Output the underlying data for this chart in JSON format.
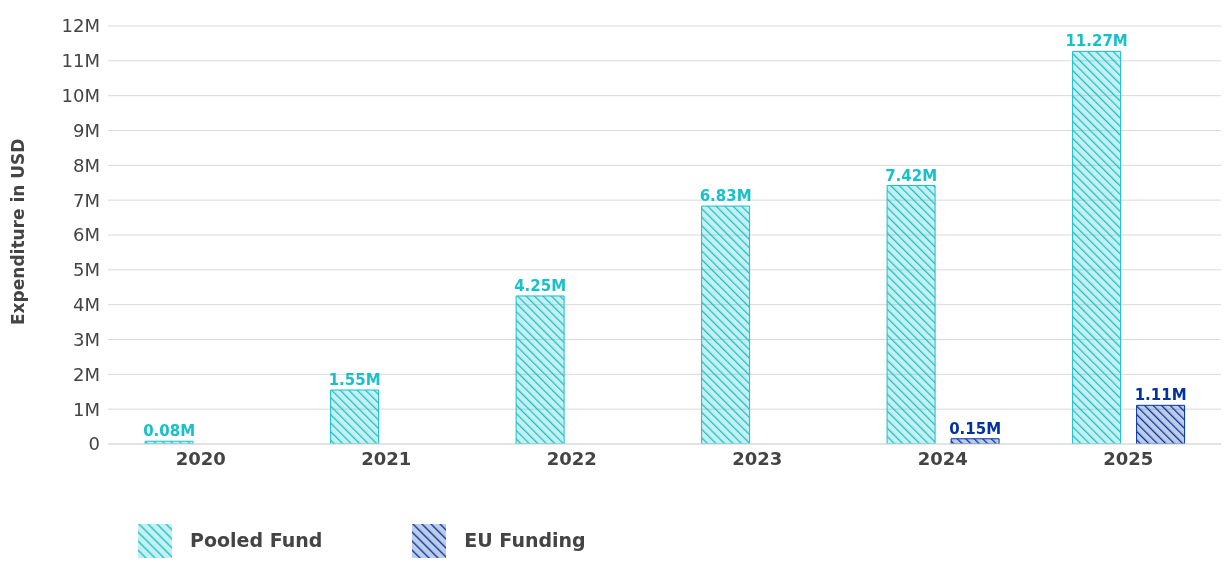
{
  "chart_data": {
    "type": "bar",
    "ylabel": "Expenditure in USD",
    "categories": [
      "2020",
      "2021",
      "2022",
      "2023",
      "2024",
      "2025"
    ],
    "series": [
      {
        "name": "Pooled Fund",
        "color": "#17c1c9",
        "values": [
          0.08,
          1.55,
          4.25,
          6.83,
          7.42,
          11.27
        ],
        "value_labels": [
          "0.08M",
          "1.55M",
          "4.25M",
          "6.83M",
          "7.42M",
          "11.27M"
        ]
      },
      {
        "name": "EU Funding",
        "color": "#0033a0",
        "values": [
          null,
          null,
          null,
          null,
          0.15,
          1.11
        ],
        "value_labels": [
          null,
          null,
          null,
          null,
          "0.15M",
          "1.11M"
        ]
      }
    ],
    "ylim": [
      0,
      12
    ],
    "yticks": [
      0,
      {
        "value": 1,
        "label": "1M"
      },
      {
        "value": 2,
        "label": "2M"
      },
      {
        "value": 3,
        "label": "3M"
      },
      {
        "value": 4,
        "label": "4M"
      },
      {
        "value": 5,
        "label": "5M"
      },
      {
        "value": 6,
        "label": "6M"
      },
      {
        "value": 7,
        "label": "7M"
      },
      {
        "value": 8,
        "label": "8M"
      },
      {
        "value": 9,
        "label": "9M"
      },
      {
        "value": 10,
        "label": "10M"
      },
      {
        "value": 11,
        "label": "11M"
      },
      {
        "value": 12,
        "label": "12M"
      }
    ],
    "grid": "y",
    "legend": "bottom"
  }
}
